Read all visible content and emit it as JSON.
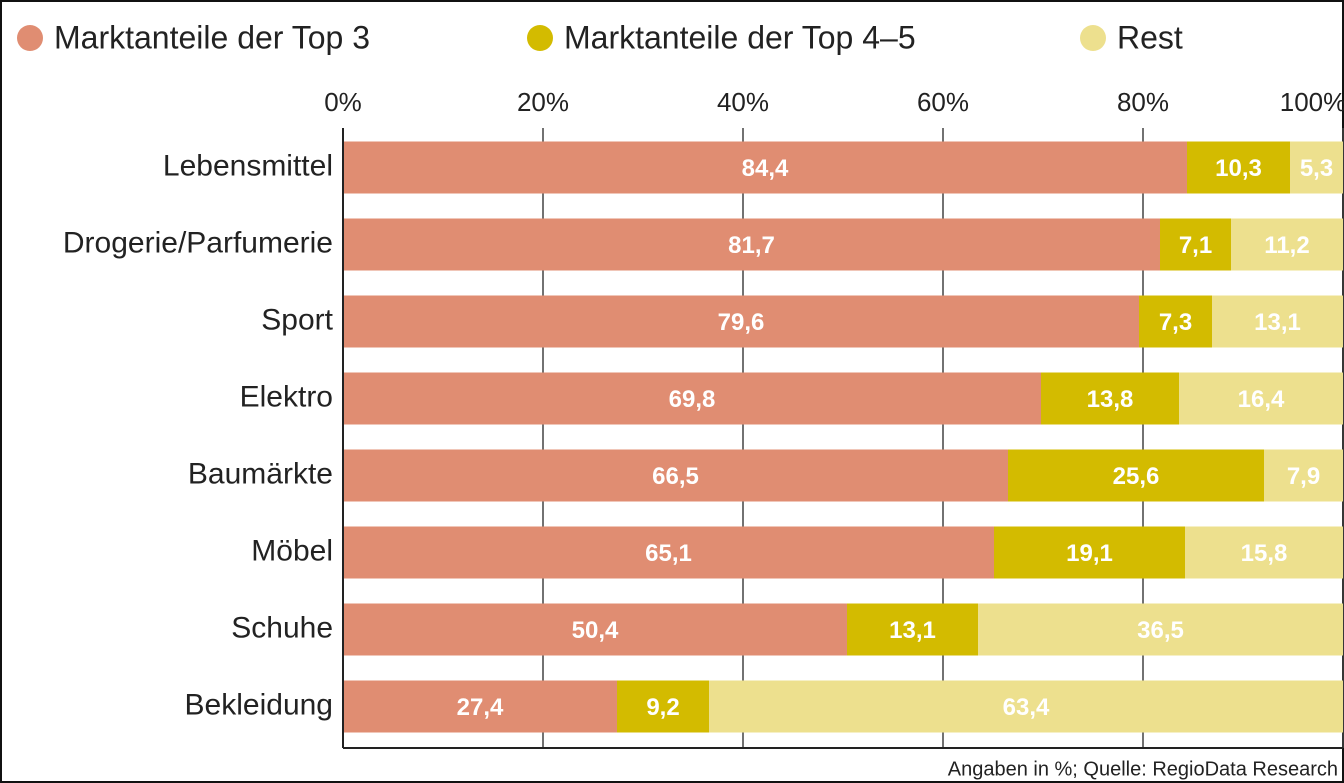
{
  "chart_data": {
    "type": "stacked-bar-horizontal",
    "categories": [
      "Lebensmittel",
      "Drogerie/Parfumerie",
      "Sport",
      "Elektro",
      "Baumärkte",
      "Möbel",
      "Schuhe",
      "Bekleidung"
    ],
    "series": [
      {
        "name": "Marktanteile der Top 3",
        "color": "#e08d72",
        "values": [
          84.4,
          81.7,
          79.6,
          69.8,
          66.5,
          65.1,
          50.4,
          27.4
        ],
        "value_labels": [
          "84,4",
          "81,7",
          "79,6",
          "69,8",
          "66,5",
          "65,1",
          "50,4",
          "27,4"
        ]
      },
      {
        "name": "Marktanteile der Top 4–5",
        "color": "#d3bb00",
        "values": [
          10.3,
          7.1,
          7.3,
          13.8,
          25.6,
          19.1,
          13.1,
          9.2
        ],
        "value_labels": [
          "10,3",
          "7,1",
          "7,3",
          "13,8",
          "25,6",
          "19,1",
          "13,1",
          "9,2"
        ]
      },
      {
        "name": "Rest",
        "color": "#ede08e",
        "values": [
          5.3,
          11.2,
          13.1,
          16.4,
          7.9,
          15.8,
          36.5,
          63.4
        ],
        "value_labels": [
          "5,3",
          "11,2",
          "13,1",
          "16,4",
          "7,9",
          "15,8",
          "36,5",
          "63,4"
        ]
      }
    ],
    "xlim": [
      0,
      100
    ],
    "xticks": [
      {
        "value": 0,
        "label": "0%"
      },
      {
        "value": 20,
        "label": "20%"
      },
      {
        "value": 40,
        "label": "40%"
      },
      {
        "value": 60,
        "label": "60%"
      },
      {
        "value": 80,
        "label": "80%"
      },
      {
        "value": 100,
        "label": "100%"
      }
    ],
    "grid": true,
    "legend": "top",
    "note": "Angaben in %; Quelle: RegioData Research"
  }
}
